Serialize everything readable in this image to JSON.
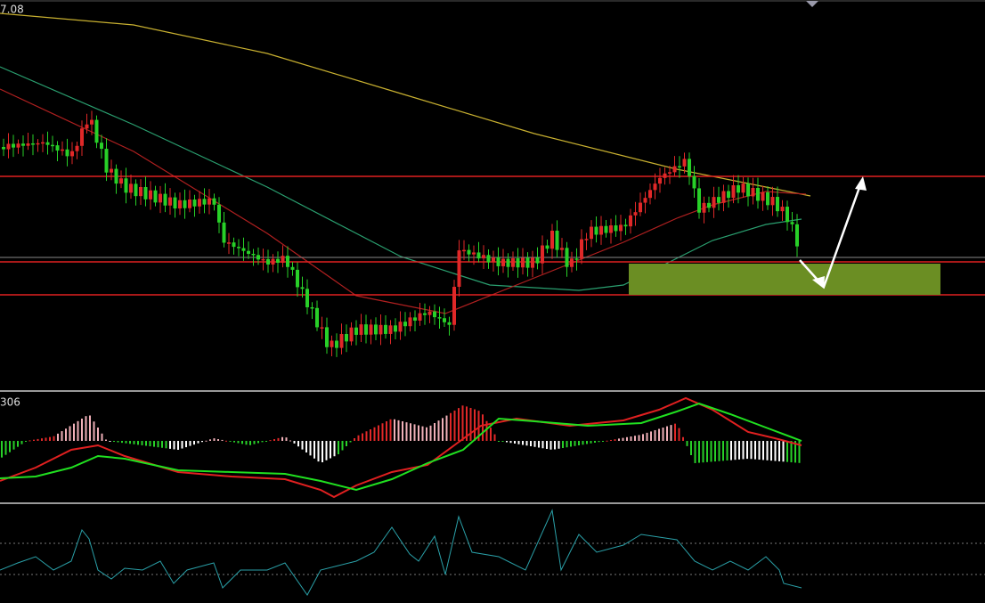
{
  "price_panel": {
    "label": "7.08"
  },
  "macd_panel": {
    "label": "306"
  }
}
